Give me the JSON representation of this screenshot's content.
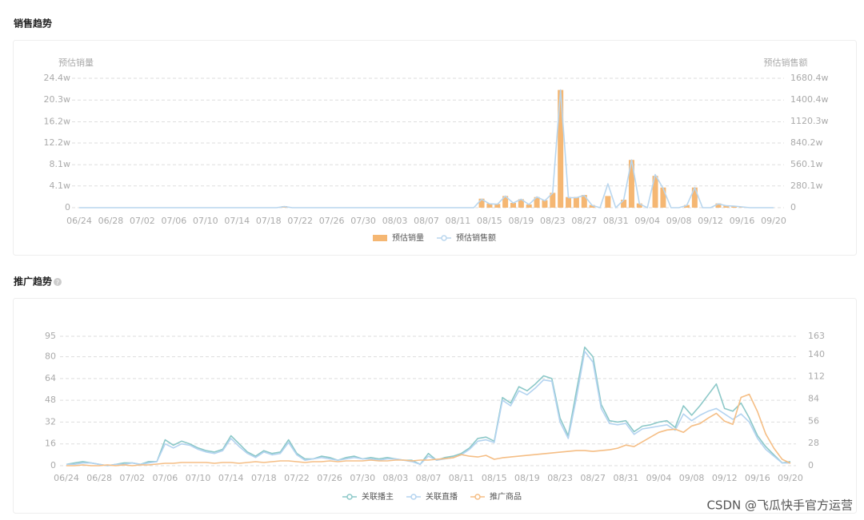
{
  "chart_data": [
    {
      "type": "combo",
      "title": "销售趋势",
      "ylabel": "预估销量",
      "y2label": "预估销售额",
      "categories": [
        "06/24",
        null,
        null,
        null,
        "06/28",
        null,
        null,
        null,
        "07/02",
        null,
        null,
        null,
        "07/06",
        null,
        null,
        null,
        "07/10",
        null,
        null,
        null,
        "07/14",
        null,
        null,
        null,
        "07/18",
        null,
        null,
        null,
        "07/22",
        null,
        null,
        null,
        "07/26",
        null,
        null,
        null,
        "07/30",
        null,
        null,
        null,
        "08/03",
        null,
        null,
        null,
        "08/07",
        null,
        null,
        null,
        "08/11",
        null,
        null,
        null,
        "08/15",
        null,
        null,
        null,
        "08/19",
        null,
        null,
        null,
        "08/23",
        null,
        null,
        null,
        "08/27",
        null,
        null,
        null,
        "08/31",
        null,
        null,
        null,
        "09/04",
        null,
        null,
        null,
        "09/08",
        null,
        null,
        null,
        "09/12",
        null,
        null,
        null,
        "09/16",
        null,
        null,
        null,
        "09/20"
      ],
      "series": [
        {
          "name": "预估销量",
          "type": "bar",
          "color": "#f5b773",
          "values": [
            0,
            0,
            0,
            0,
            0,
            0,
            0,
            0,
            0,
            0,
            0,
            0,
            0,
            0,
            0,
            0,
            0,
            0,
            0,
            0,
            0,
            0,
            0,
            0,
            0,
            0,
            3000,
            0,
            0,
            0,
            0,
            0,
            0,
            0,
            0,
            0,
            0,
            0,
            0,
            0,
            0,
            0,
            0,
            0,
            0,
            0,
            0,
            0,
            0,
            0,
            0,
            17000,
            8000,
            7000,
            22000,
            9000,
            16000,
            6000,
            20000,
            14000,
            28000,
            222000,
            20000,
            20000,
            24000,
            5000,
            0,
            22000,
            0,
            15000,
            90000,
            8000,
            0,
            60000,
            38000,
            0,
            0,
            5000,
            38000,
            0,
            0,
            8000,
            4000,
            3000,
            2000,
            0,
            0,
            0,
            0
          ]
        },
        {
          "name": "预估销售额",
          "type": "line",
          "axis": "y2",
          "color": "#b9d6ee",
          "values": [
            0,
            0,
            0,
            0,
            0,
            0,
            0,
            0,
            0,
            0,
            0,
            0,
            0,
            0,
            0,
            0,
            0,
            0,
            0,
            0,
            0,
            0,
            0,
            0,
            0,
            0,
            150000,
            0,
            0,
            0,
            0,
            0,
            0,
            0,
            0,
            0,
            0,
            0,
            0,
            0,
            0,
            0,
            0,
            0,
            0,
            0,
            0,
            0,
            0,
            0,
            0,
            1100000,
            500000,
            450000,
            1500000,
            600000,
            1100000,
            400000,
            1400000,
            900000,
            1900000,
            15300000,
            1300000,
            1300000,
            1600000,
            300000,
            0,
            3100000,
            0,
            1000000,
            6200000,
            500000,
            0,
            4300000,
            2500000,
            0,
            0,
            300000,
            2600000,
            0,
            0,
            500000,
            250000,
            200000,
            100000,
            0,
            0,
            0,
            0
          ]
        }
      ],
      "ylim": [
        0,
        244000
      ],
      "yticks": [
        0,
        {
          "value": 41000,
          "label": "4.1w"
        },
        {
          "value": 81000,
          "label": "8.1w"
        },
        {
          "value": 122000,
          "label": "12.2w"
        },
        {
          "value": 162000,
          "label": "16.2w"
        },
        {
          "value": 203000,
          "label": "20.3w"
        },
        {
          "value": 244000,
          "label": "24.4w"
        }
      ],
      "y2lim": [
        0,
        16804000
      ],
      "y2ticks": [
        0,
        {
          "value": 2801000,
          "label": "280.1w"
        },
        {
          "value": 5601000,
          "label": "560.1w"
        },
        {
          "value": 8402000,
          "label": "840.2w"
        },
        {
          "value": 11203000,
          "label": "1120.3w"
        },
        {
          "value": 14004000,
          "label": "1400.4w"
        },
        {
          "value": 16804000,
          "label": "1680.4w"
        }
      ],
      "grid": true
    },
    {
      "type": "line",
      "title": "推广趋势",
      "categories": [
        "06/24",
        null,
        null,
        null,
        "06/28",
        null,
        null,
        null,
        "07/02",
        null,
        null,
        null,
        "07/06",
        null,
        null,
        null,
        "07/10",
        null,
        null,
        null,
        "07/14",
        null,
        null,
        null,
        "07/18",
        null,
        null,
        null,
        "07/22",
        null,
        null,
        null,
        "07/26",
        null,
        null,
        null,
        "07/30",
        null,
        null,
        null,
        "08/03",
        null,
        null,
        null,
        "08/07",
        null,
        null,
        null,
        "08/11",
        null,
        null,
        null,
        "08/15",
        null,
        null,
        null,
        "08/19",
        null,
        null,
        null,
        "08/23",
        null,
        null,
        null,
        "08/27",
        null,
        null,
        null,
        "08/31",
        null,
        null,
        null,
        "09/04",
        null,
        null,
        null,
        "09/08",
        null,
        null,
        null,
        "09/12",
        null,
        null,
        null,
        "09/16",
        null,
        null,
        null,
        "09/20"
      ],
      "series": [
        {
          "name": "关联播主",
          "color": "#8cc8c8",
          "values": [
            1,
            2,
            3,
            2,
            1,
            0,
            1,
            2,
            2,
            1,
            3,
            3,
            19,
            15,
            18,
            16,
            13,
            11,
            10,
            12,
            22,
            16,
            10,
            7,
            11,
            9,
            10,
            19,
            9,
            5,
            5,
            7,
            6,
            4,
            6,
            7,
            5,
            6,
            5,
            6,
            5,
            4,
            4,
            1,
            9,
            4,
            6,
            7,
            9,
            13,
            20,
            21,
            18,
            50,
            46,
            58,
            55,
            60,
            66,
            64,
            35,
            22,
            55,
            87,
            80,
            45,
            33,
            32,
            33,
            25,
            29,
            30,
            32,
            33,
            28,
            44,
            37,
            44,
            52,
            60,
            42,
            40,
            46,
            35,
            22,
            14,
            8,
            2,
            3
          ]
        },
        {
          "name": "关联直播",
          "color": "#b3d3f0",
          "values": [
            1,
            1,
            2,
            2,
            1,
            0,
            1,
            1,
            2,
            1,
            2,
            3,
            16,
            13,
            16,
            15,
            12,
            10,
            9,
            11,
            20,
            14,
            9,
            6,
            10,
            8,
            9,
            17,
            8,
            4,
            5,
            6,
            5,
            4,
            5,
            6,
            5,
            5,
            4,
            5,
            5,
            4,
            3,
            1,
            7,
            4,
            5,
            6,
            8,
            12,
            18,
            19,
            17,
            48,
            44,
            55,
            52,
            57,
            63,
            62,
            32,
            20,
            50,
            84,
            76,
            42,
            31,
            30,
            31,
            23,
            27,
            28,
            29,
            30,
            26,
            38,
            33,
            37,
            40,
            42,
            38,
            34,
            38,
            32,
            20,
            12,
            7,
            2,
            2
          ]
        },
        {
          "name": "推广商品",
          "axis": "y2",
          "color": "#f5be85",
          "values": [
            0,
            0,
            1,
            0,
            0,
            1,
            0,
            1,
            0,
            1,
            1,
            2,
            3,
            3,
            4,
            4,
            4,
            4,
            3,
            4,
            4,
            3,
            4,
            5,
            4,
            5,
            6,
            6,
            5,
            4,
            5,
            5,
            6,
            5,
            6,
            6,
            6,
            7,
            6,
            6,
            7,
            7,
            6,
            7,
            7,
            8,
            9,
            10,
            14,
            12,
            11,
            13,
            8,
            10,
            11,
            12,
            13,
            14,
            15,
            16,
            17,
            18,
            19,
            19,
            18,
            19,
            20,
            22,
            26,
            24,
            30,
            36,
            42,
            45,
            46,
            42,
            50,
            53,
            60,
            66,
            56,
            52,
            86,
            90,
            68,
            40,
            22,
            8,
            3
          ]
        }
      ],
      "ylim": [
        0,
        95
      ],
      "yticks": [
        0,
        16,
        32,
        48,
        64,
        80,
        95
      ],
      "y2lim": [
        0,
        163
      ],
      "y2ticks": [
        0,
        28,
        56,
        84,
        112,
        140,
        163
      ],
      "grid": true
    }
  ],
  "watermark": "CSDN @飞瓜快手官方运营"
}
